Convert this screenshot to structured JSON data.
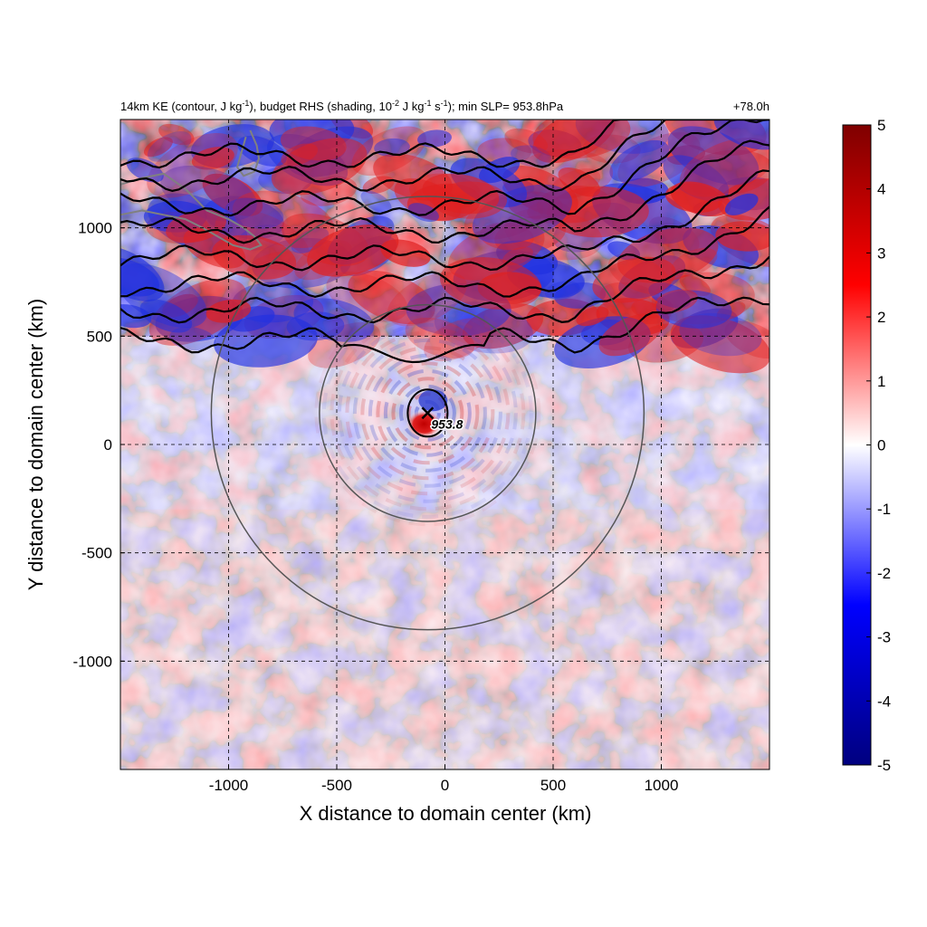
{
  "chart_data": {
    "type": "heatmap",
    "title_left_parts": [
      "14km KE (contour, J kg",
      "-1",
      "), budget RHS (shading, 10",
      "-2",
      " J kg",
      "-1",
      " s",
      "-1",
      "); min SLP= 953.8hPa"
    ],
    "title_right": "+78.0h",
    "xlabel": "X distance to domain center (km)",
    "ylabel": "Y distance to domain center (km)",
    "xlim": [
      -1500,
      1500
    ],
    "ylim": [
      -1500,
      1500
    ],
    "x_ticks": [
      -1000,
      -500,
      0,
      500,
      1000
    ],
    "x_tick_labels": [
      "-1000",
      "-500",
      "0",
      "500",
      "1000"
    ],
    "y_ticks": [
      -1000,
      -500,
      0,
      500,
      1000
    ],
    "y_tick_labels": [
      "-1000",
      "-500",
      "0",
      "500",
      "1000"
    ],
    "grid": "dashed",
    "colorbar": {
      "min": -5,
      "max": 5,
      "ticks": [
        5,
        4,
        3,
        2,
        1,
        0,
        -1,
        -2,
        -3,
        -4,
        -5
      ],
      "tick_labels": [
        "5",
        "4",
        "3",
        "2",
        "1",
        "0",
        "-1",
        "-2",
        "-3",
        "-4",
        "-5"
      ],
      "colors": [
        "#00007f",
        "#0000ff",
        "#ffffff",
        "#ff0000",
        "#7f0000"
      ]
    },
    "storm_center": {
      "x": -80,
      "y": 145,
      "label": "953.8"
    },
    "range_circles": [
      {
        "center_x": -80,
        "center_y": 145,
        "radius": 500
      },
      {
        "center_x": -80,
        "center_y": 145,
        "radius": 1000
      }
    ],
    "ke_contours_approx_y": [
      480,
      620,
      740,
      860,
      990,
      1110,
      1230,
      1330
    ]
  }
}
